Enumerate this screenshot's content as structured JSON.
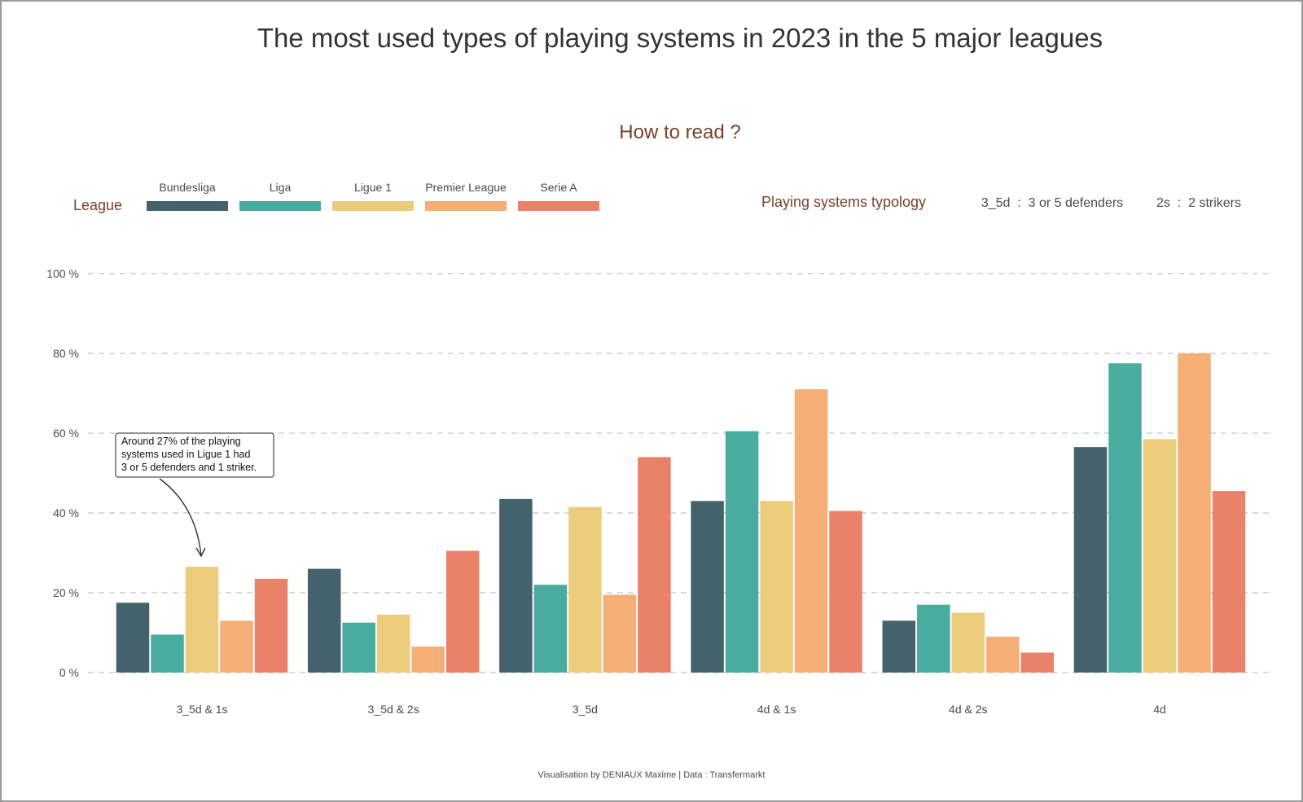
{
  "title": "The most used types of playing systems in 2023 in the 5 major leagues",
  "how_to_read": "How to read ?",
  "legend": {
    "heading": "League",
    "placement": "top-left"
  },
  "typology": {
    "heading": "Playing systems typology",
    "items": [
      "3_5d  :  3 or 5 defenders",
      "2s  :  2 strikers"
    ]
  },
  "annotation": {
    "lines": [
      "Around 27% of the playing",
      "systems used in Ligue 1 had",
      "3 or 5 defenders and 1 striker."
    ]
  },
  "caption": "Visualisation by DENIAUX Maxime | Data : Transfermarkt",
  "chart_data": {
    "type": "bar",
    "title": "The most used types of playing systems in 2023 in the 5 major leagues",
    "xlabel": "",
    "ylabel": "",
    "ylim": [
      0,
      100
    ],
    "yticks": [
      0,
      20,
      40,
      60,
      80,
      100
    ],
    "ytick_labels": [
      "0 %",
      "20 %",
      "40 %",
      "60 %",
      "80 %",
      "100 %"
    ],
    "grid": true,
    "legend_placement": "top-left",
    "categories": [
      "3_5d & 1s",
      "3_5d & 2s",
      "3_5d",
      "4d & 1s",
      "4d & 2s",
      "4d"
    ],
    "series": [
      {
        "name": "Bundesliga",
        "color": "#44626b",
        "values": [
          17.5,
          26,
          43.5,
          43,
          13,
          56.5
        ]
      },
      {
        "name": "Liga",
        "color": "#4aab9f",
        "values": [
          9.5,
          12.5,
          22,
          60.5,
          17,
          77.5
        ]
      },
      {
        "name": "Ligue 1",
        "color": "#ebcc7c",
        "values": [
          26.5,
          14.5,
          41.5,
          43,
          15,
          58.5
        ]
      },
      {
        "name": "Premier League",
        "color": "#f4ae76",
        "values": [
          13,
          6.5,
          19.5,
          71,
          9,
          80
        ]
      },
      {
        "name": "Serie A",
        "color": "#ea826a",
        "values": [
          23.5,
          30.5,
          54,
          40.5,
          5,
          45.5
        ]
      }
    ]
  }
}
